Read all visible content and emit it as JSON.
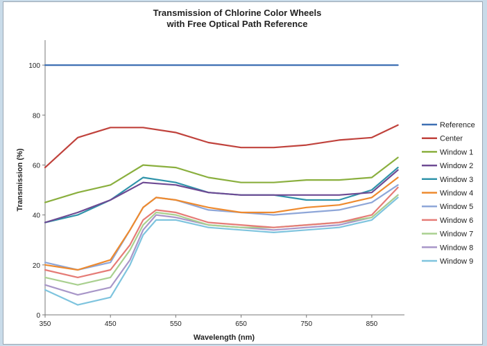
{
  "chart_data": {
    "type": "line",
    "title": "Transmission of Chlorine Color Wheels",
    "subtitle": "with Free Optical Path Reference",
    "xlabel": "Wavelength (nm)",
    "ylabel": "Transmission (%)",
    "xlim": [
      350,
      900
    ],
    "ylim": [
      0,
      110
    ],
    "xticks": [
      350,
      450,
      550,
      650,
      750,
      850
    ],
    "yticks": [
      0,
      20,
      40,
      60,
      80,
      100
    ],
    "grid": false,
    "legend_position": "right",
    "series": [
      {
        "name": "Reference",
        "color": "#3d6fb3",
        "x": [
          350,
          400,
          450,
          500,
          550,
          600,
          650,
          700,
          750,
          800,
          850,
          890
        ],
        "y": [
          100,
          100,
          100,
          100,
          100,
          100,
          100,
          100,
          100,
          100,
          100,
          100
        ]
      },
      {
        "name": "Center",
        "color": "#c0423c",
        "x": [
          350,
          400,
          450,
          500,
          550,
          600,
          650,
          700,
          750,
          800,
          850,
          890
        ],
        "y": [
          59,
          71,
          75,
          75,
          73,
          69,
          67,
          67,
          68,
          70,
          71,
          76
        ]
      },
      {
        "name": "Window 1",
        "color": "#8aaf3e",
        "x": [
          350,
          400,
          450,
          500,
          550,
          600,
          650,
          700,
          750,
          800,
          850,
          890
        ],
        "y": [
          45,
          49,
          52,
          60,
          59,
          55,
          53,
          53,
          54,
          54,
          55,
          63
        ]
      },
      {
        "name": "Window 2",
        "color": "#6d4a93",
        "x": [
          350,
          400,
          450,
          500,
          550,
          600,
          650,
          700,
          750,
          800,
          850,
          890
        ],
        "y": [
          37,
          41,
          46,
          53,
          52,
          49,
          48,
          48,
          48,
          48,
          49,
          58
        ]
      },
      {
        "name": "Window 3",
        "color": "#2f93aa",
        "x": [
          350,
          400,
          450,
          500,
          550,
          600,
          650,
          700,
          750,
          800,
          850,
          890
        ],
        "y": [
          37,
          40,
          46,
          55,
          53,
          49,
          48,
          48,
          46,
          46,
          50,
          59
        ]
      },
      {
        "name": "Window 4",
        "color": "#ee8a2e",
        "x": [
          350,
          400,
          450,
          480,
          500,
          520,
          550,
          600,
          650,
          700,
          750,
          800,
          850,
          890
        ],
        "y": [
          20,
          18,
          22,
          34,
          43,
          47,
          46,
          43,
          41,
          41,
          43,
          44,
          47,
          55
        ]
      },
      {
        "name": "Window 5",
        "color": "#8ea6d8",
        "x": [
          350,
          400,
          450,
          480,
          500,
          520,
          550,
          600,
          650,
          700,
          750,
          800,
          850,
          890
        ],
        "y": [
          21,
          18,
          21,
          34,
          43,
          47,
          46,
          42,
          41,
          40,
          41,
          42,
          45,
          52
        ]
      },
      {
        "name": "Window 6",
        "color": "#e57b76",
        "x": [
          350,
          400,
          450,
          480,
          500,
          520,
          550,
          600,
          650,
          700,
          750,
          800,
          850,
          890
        ],
        "y": [
          18,
          15,
          18,
          28,
          38,
          42,
          41,
          37,
          36,
          35,
          36,
          37,
          40,
          51
        ]
      },
      {
        "name": "Window 7",
        "color": "#a9d08f",
        "x": [
          350,
          400,
          450,
          480,
          500,
          520,
          550,
          600,
          650,
          700,
          750,
          800,
          850,
          890
        ],
        "y": [
          15,
          12,
          15,
          26,
          36,
          41,
          40,
          36,
          35,
          35,
          36,
          37,
          39,
          48
        ]
      },
      {
        "name": "Window 8",
        "color": "#a896c8",
        "x": [
          350,
          400,
          450,
          480,
          500,
          520,
          550,
          600,
          650,
          700,
          750,
          800,
          850,
          890
        ],
        "y": [
          12,
          8,
          11,
          22,
          34,
          40,
          39,
          36,
          35,
          34,
          35,
          36,
          39,
          48
        ]
      },
      {
        "name": "Window 9",
        "color": "#7ec4de",
        "x": [
          350,
          400,
          450,
          480,
          500,
          520,
          550,
          600,
          650,
          700,
          750,
          800,
          850,
          890
        ],
        "y": [
          10,
          4,
          7,
          20,
          32,
          38,
          38,
          35,
          34,
          33,
          34,
          35,
          38,
          47
        ]
      }
    ]
  }
}
